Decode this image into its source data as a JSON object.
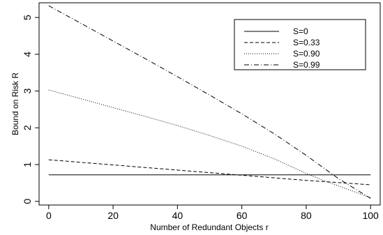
{
  "chart_data": {
    "type": "line",
    "title": "",
    "xlabel": "Number of Redundant Objects r",
    "ylabel": "Bound on Risk R",
    "xlim": [
      -3,
      103
    ],
    "ylim": [
      -0.1,
      5.4
    ],
    "x_ticks": [
      0,
      20,
      40,
      60,
      80,
      100
    ],
    "x_tick_labels": [
      "0",
      "20",
      "40",
      "60",
      "80",
      "100"
    ],
    "y_ticks": [
      0,
      1,
      2,
      3,
      4,
      5
    ],
    "y_tick_labels": [
      "0",
      "1",
      "2",
      "3",
      "4",
      "5"
    ],
    "grid": false,
    "legend_position": "top-right",
    "series": [
      {
        "name": "S=0",
        "line_style": "solid",
        "x": [
          0,
          20,
          40,
          60,
          80,
          100
        ],
        "y": [
          0.72,
          0.72,
          0.72,
          0.72,
          0.72,
          0.72
        ]
      },
      {
        "name": "S=0.33",
        "line_style": "dashed",
        "x": [
          0,
          20,
          40,
          60,
          80,
          90,
          100
        ],
        "y": [
          1.13,
          0.99,
          0.85,
          0.71,
          0.57,
          0.51,
          0.45
        ]
      },
      {
        "name": "S=0.90",
        "line_style": "dotted",
        "x": [
          0,
          10,
          20,
          30,
          40,
          50,
          60,
          70,
          80,
          85,
          90,
          95,
          100
        ],
        "y": [
          3.03,
          2.79,
          2.55,
          2.31,
          2.06,
          1.79,
          1.5,
          1.16,
          0.76,
          0.58,
          0.42,
          0.26,
          0.1
        ]
      },
      {
        "name": "S=0.99",
        "line_style": "dashdot",
        "x": [
          0,
          10,
          20,
          30,
          40,
          50,
          60,
          70,
          80,
          90,
          100
        ],
        "y": [
          5.32,
          4.84,
          4.36,
          3.88,
          3.39,
          2.89,
          2.38,
          1.84,
          1.25,
          0.62,
          0.08
        ]
      }
    ],
    "colors": {
      "line": "#000000",
      "axis": "#000000",
      "background": "#ffffff"
    }
  }
}
